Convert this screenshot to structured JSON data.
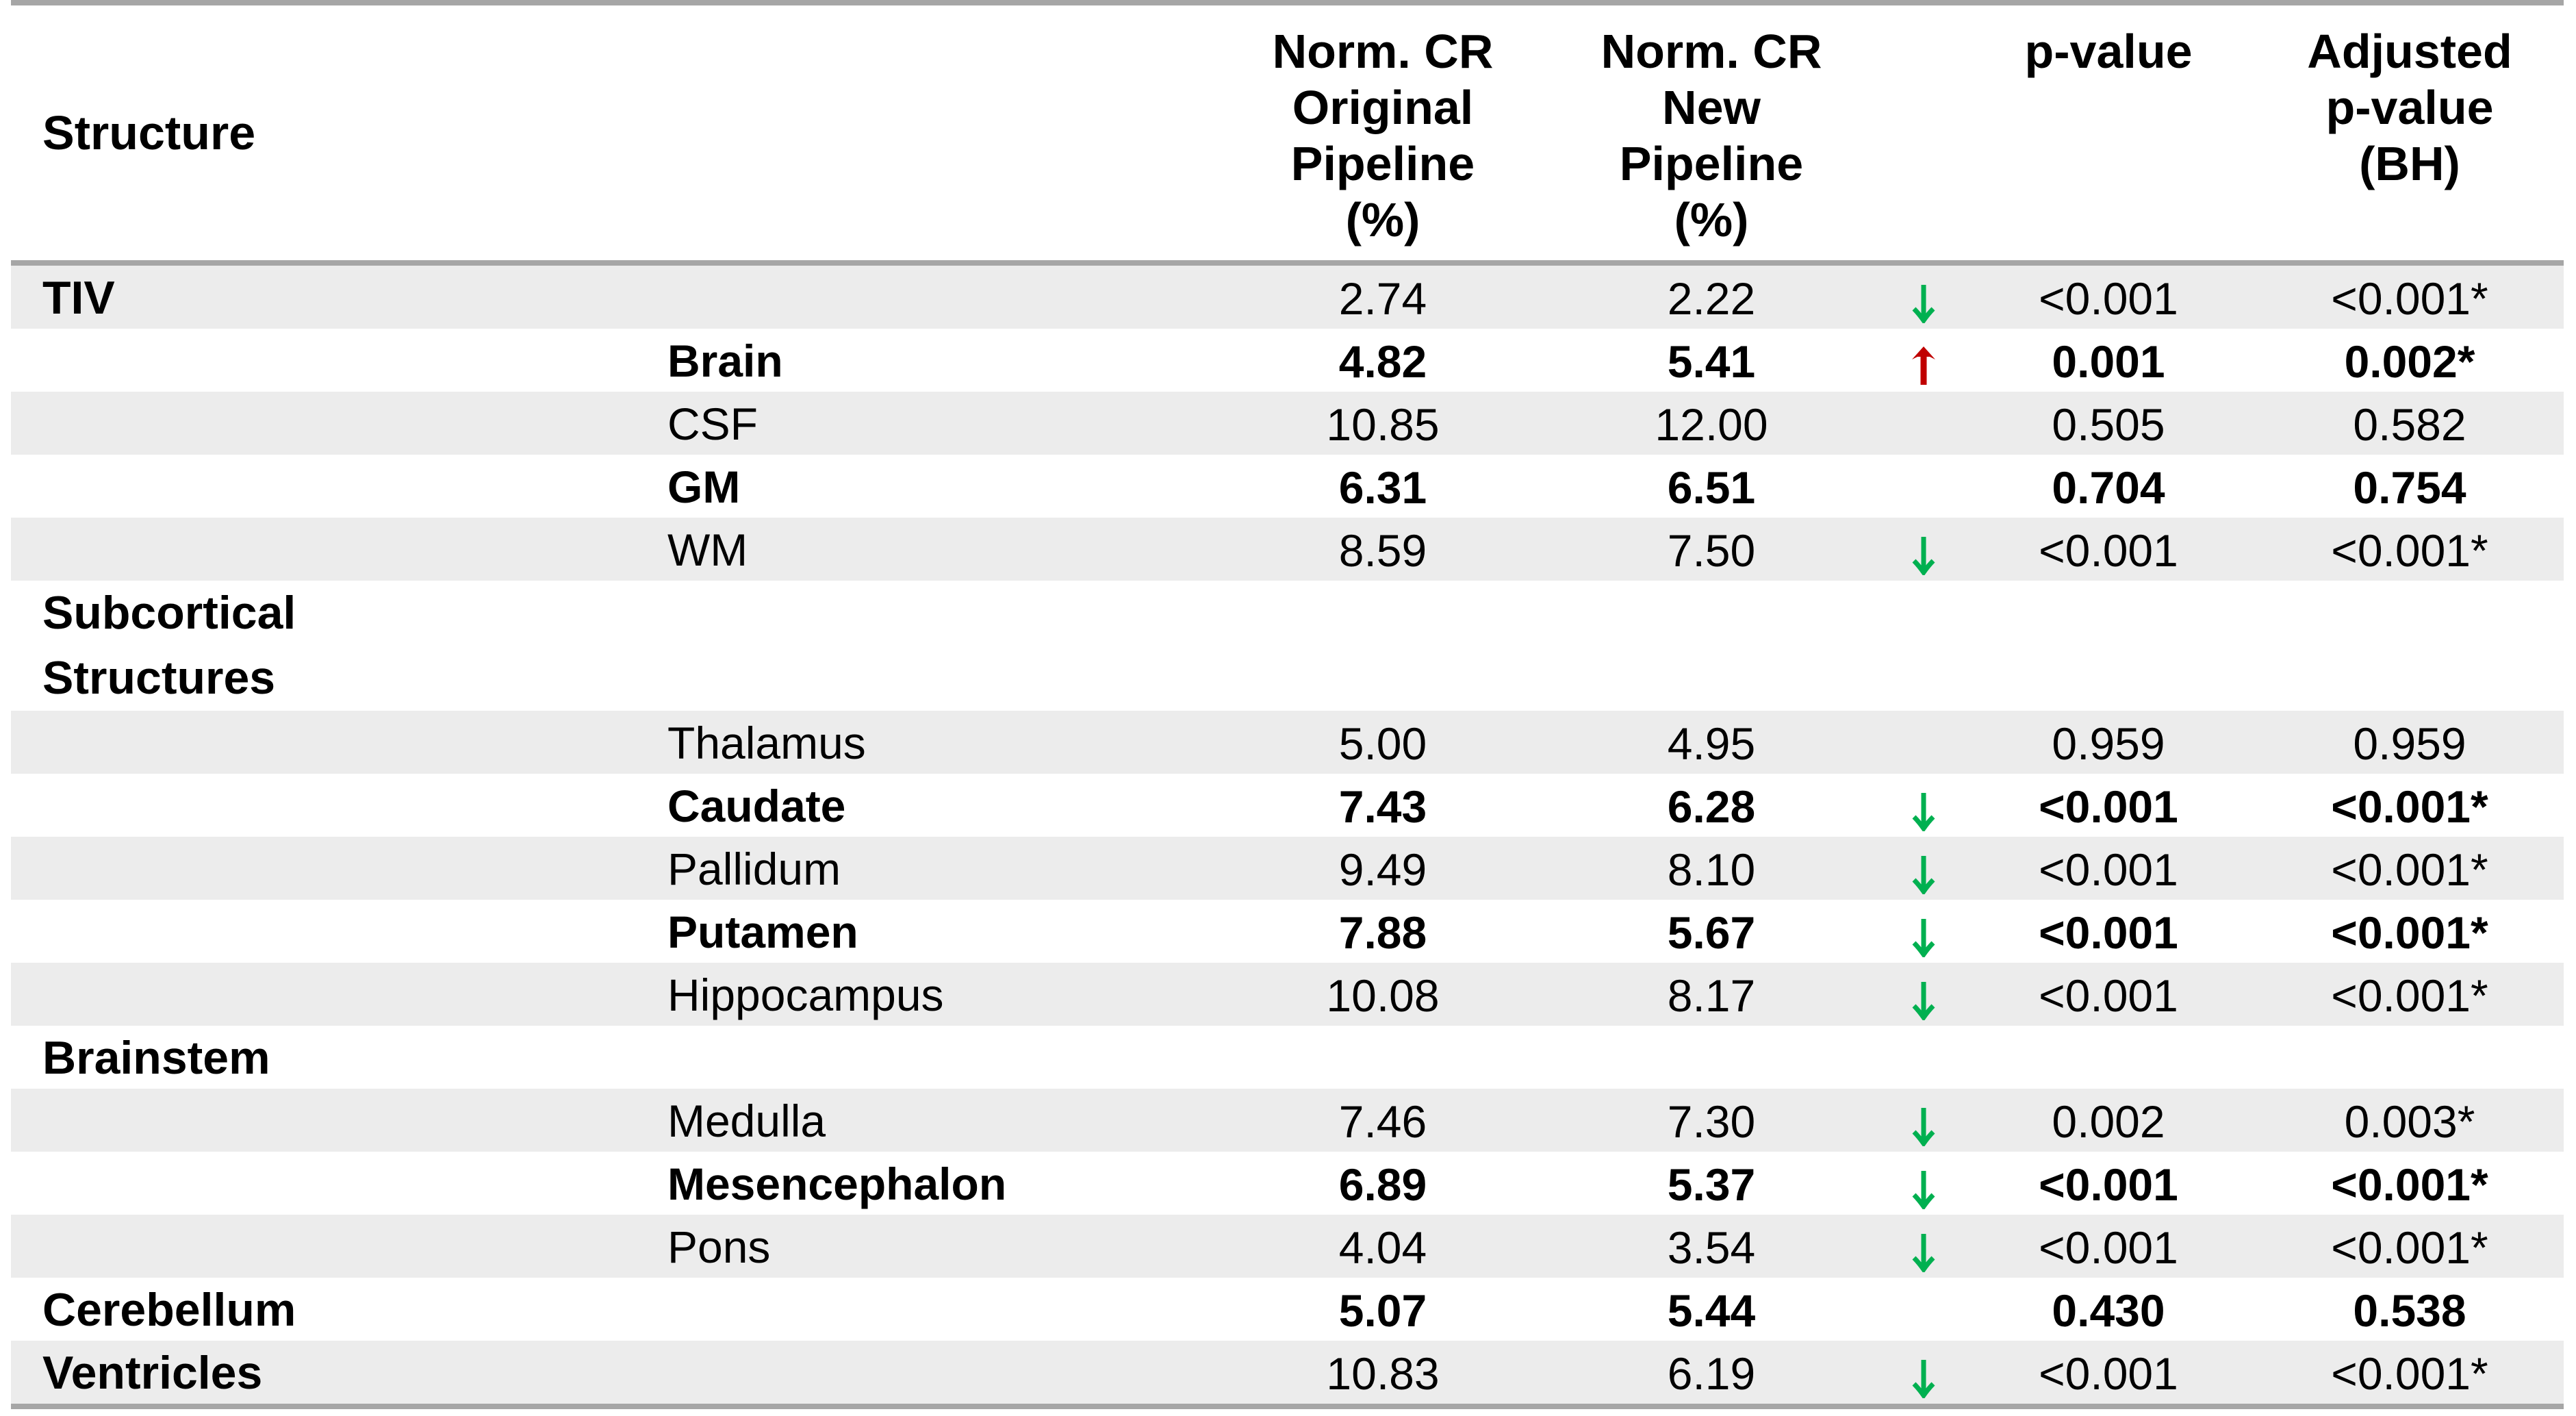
{
  "table": {
    "header": {
      "structure": "Structure",
      "cols": [
        {
          "id": "orig",
          "lines": [
            "Norm. CR",
            "Original",
            "Pipeline",
            "(%)"
          ]
        },
        {
          "id": "new",
          "lines": [
            "Norm. CR",
            "New",
            "Pipeline",
            "(%)"
          ]
        },
        {
          "id": "trend",
          "lines": []
        },
        {
          "id": "p",
          "lines": [
            "p-value"
          ]
        },
        {
          "id": "adj",
          "lines": [
            "Adjusted",
            "p-value",
            "(BH)"
          ]
        }
      ]
    },
    "rows": [
      {
        "label": "TIV",
        "level": "group",
        "shaded": true,
        "orig": "2.74",
        "new": "2.22",
        "arrow": "down",
        "p": "<0.001",
        "adj": "<0.001*"
      },
      {
        "label": "Brain",
        "level": "sub",
        "shaded": false,
        "orig": "4.82",
        "new": "5.41",
        "arrow": "up",
        "p": "0.001",
        "adj": "0.002*"
      },
      {
        "label": "CSF",
        "level": "sub",
        "shaded": true,
        "orig": "10.85",
        "new": "12.00",
        "arrow": null,
        "p": "0.505",
        "adj": "0.582"
      },
      {
        "label": "GM",
        "level": "sub",
        "shaded": false,
        "orig": "6.31",
        "new": "6.51",
        "arrow": null,
        "p": "0.704",
        "adj": "0.754"
      },
      {
        "label": "WM",
        "level": "sub",
        "shaded": true,
        "orig": "8.59",
        "new": "7.50",
        "arrow": "down",
        "p": "<0.001",
        "adj": "<0.001*"
      },
      {
        "label": "Subcortical Structures",
        "label_lines": [
          "Subcortical",
          "Structures"
        ],
        "level": "group",
        "shaded": false,
        "tall": true,
        "orig": "",
        "new": "",
        "arrow": null,
        "p": "",
        "adj": ""
      },
      {
        "label": "Thalamus",
        "level": "sub",
        "shaded": true,
        "orig": "5.00",
        "new": "4.95",
        "arrow": null,
        "p": "0.959",
        "adj": "0.959"
      },
      {
        "label": "Caudate",
        "level": "sub",
        "shaded": false,
        "orig": "7.43",
        "new": "6.28",
        "arrow": "down",
        "p": "<0.001",
        "adj": "<0.001*"
      },
      {
        "label": "Pallidum",
        "level": "sub",
        "shaded": true,
        "orig": "9.49",
        "new": "8.10",
        "arrow": "down",
        "p": "<0.001",
        "adj": "<0.001*"
      },
      {
        "label": "Putamen",
        "level": "sub",
        "shaded": false,
        "orig": "7.88",
        "new": "5.67",
        "arrow": "down",
        "p": "<0.001",
        "adj": "<0.001*"
      },
      {
        "label": "Hippocampus",
        "level": "sub",
        "shaded": true,
        "orig": "10.08",
        "new": "8.17",
        "arrow": "down",
        "p": "<0.001",
        "adj": "<0.001*"
      },
      {
        "label": "Brainstem",
        "level": "group",
        "shaded": false,
        "orig": "",
        "new": "",
        "arrow": null,
        "p": "",
        "adj": ""
      },
      {
        "label": "Medulla",
        "level": "sub",
        "shaded": true,
        "orig": "7.46",
        "new": "7.30",
        "arrow": "down",
        "p": "0.002",
        "adj": "0.003*"
      },
      {
        "label": "Mesencephalon",
        "level": "sub",
        "shaded": false,
        "orig": "6.89",
        "new": "5.37",
        "arrow": "down",
        "p": "<0.001",
        "adj": "<0.001*"
      },
      {
        "label": "Pons",
        "level": "sub",
        "shaded": true,
        "orig": "4.04",
        "new": "3.54",
        "arrow": "down",
        "p": "<0.001",
        "adj": "<0.001*"
      },
      {
        "label": "Cerebellum",
        "level": "group",
        "shaded": false,
        "orig": "5.07",
        "new": "5.44",
        "arrow": null,
        "p": "0.430",
        "adj": "0.538"
      },
      {
        "label": "Ventricles",
        "level": "group",
        "shaded": true,
        "orig": "10.83",
        "new": "6.19",
        "arrow": "down",
        "p": "<0.001",
        "adj": "<0.001*"
      }
    ]
  },
  "icons": {
    "down_arrow": "decrease-arrow-icon",
    "up_arrow": "increase-arrow-icon"
  },
  "colors": {
    "row_shade": "#ececec",
    "rule_gray": "#a6a6a6",
    "decrease_green": "#00b050",
    "increase_red": "#c00000",
    "text": "#000000"
  }
}
